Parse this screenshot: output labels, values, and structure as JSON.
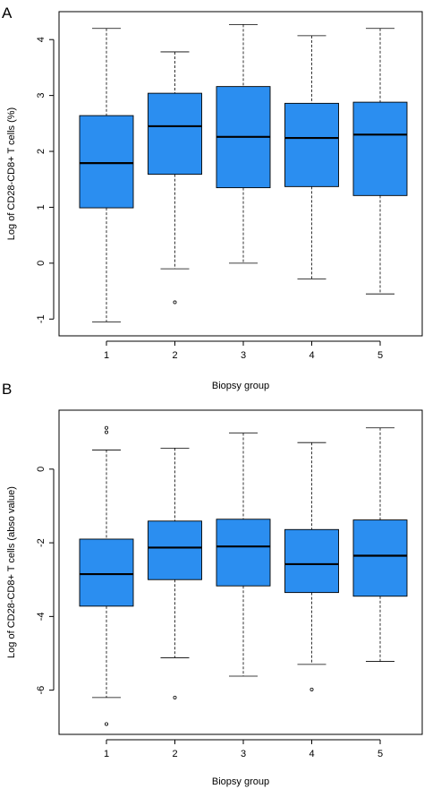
{
  "chart_data": [
    {
      "panel_label": "A",
      "type": "boxplot",
      "title": "",
      "xlabel": "Biopsy group",
      "ylabel": "Log of CD28-CD8+ T cells (%)",
      "ylim": [
        -1.3,
        4.5
      ],
      "yticks": [
        -1,
        0,
        1,
        2,
        3,
        4
      ],
      "ytick_labels": [
        "-1",
        "0",
        "1",
        "2",
        "3",
        "4"
      ],
      "categories": [
        "1",
        "2",
        "3",
        "4",
        "5"
      ],
      "box_color": "#2b8ef0",
      "boxes": [
        {
          "min": -1.05,
          "q1": 0.99,
          "median": 1.79,
          "q3": 2.64,
          "max": 4.2,
          "outliers": []
        },
        {
          "min": -0.1,
          "q1": 1.59,
          "median": 2.45,
          "q3": 3.04,
          "max": 3.78,
          "outliers": [
            -0.7
          ]
        },
        {
          "min": 0.0,
          "q1": 1.35,
          "median": 2.26,
          "q3": 3.16,
          "max": 4.27,
          "outliers": []
        },
        {
          "min": -0.28,
          "q1": 1.37,
          "median": 2.24,
          "q3": 2.86,
          "max": 4.07,
          "outliers": []
        },
        {
          "min": -0.55,
          "q1": 1.21,
          "median": 2.3,
          "q3": 2.88,
          "max": 4.2,
          "outliers": []
        }
      ]
    },
    {
      "panel_label": "B",
      "type": "boxplot",
      "title": "",
      "xlabel": "Biopsy group",
      "ylabel": "Log of CD28-CD8+ T cells (abso value)",
      "ylim": [
        -7.2,
        1.6
      ],
      "yticks": [
        -6,
        -4,
        -2,
        0
      ],
      "ytick_labels": [
        "-6",
        "-4",
        "-2",
        "0"
      ],
      "categories": [
        "1",
        "2",
        "3",
        "4",
        "5"
      ],
      "box_color": "#2b8ef0",
      "boxes": [
        {
          "min": -6.2,
          "q1": -3.72,
          "median": -2.85,
          "q3": -1.9,
          "max": 0.52,
          "outliers": [
            1.0,
            1.12,
            -6.92
          ]
        },
        {
          "min": -5.12,
          "q1": -3.0,
          "median": -2.13,
          "q3": -1.41,
          "max": 0.57,
          "outliers": [
            -6.2
          ]
        },
        {
          "min": -5.62,
          "q1": -3.17,
          "median": -2.1,
          "q3": -1.36,
          "max": 0.98,
          "outliers": []
        },
        {
          "min": -5.3,
          "q1": -3.35,
          "median": -2.58,
          "q3": -1.64,
          "max": 0.72,
          "outliers": [
            -5.98
          ]
        },
        {
          "min": -5.22,
          "q1": -3.45,
          "median": -2.35,
          "q3": -1.38,
          "max": 1.12,
          "outliers": []
        }
      ]
    }
  ]
}
